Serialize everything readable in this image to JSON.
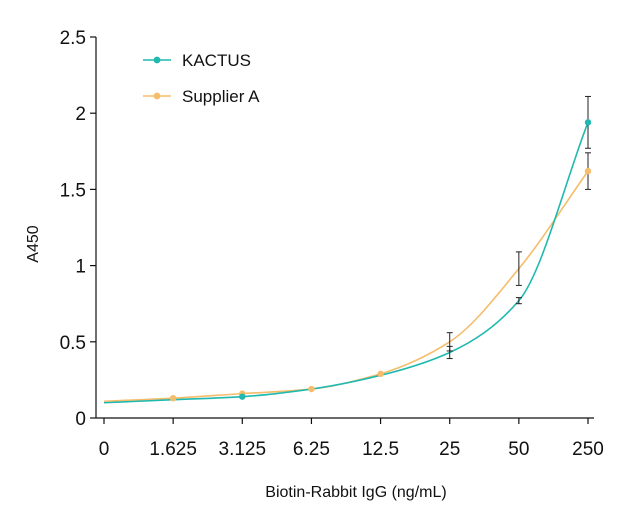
{
  "chart_data": {
    "type": "line",
    "title": "",
    "xlabel": "Biotin-Rabbit IgG (ng/mL)",
    "ylabel": "A450",
    "categories": [
      "0",
      "1.625",
      "3.125",
      "6.25",
      "12.5",
      "25",
      "50",
      "250"
    ],
    "ylim": [
      0,
      2.5
    ],
    "yticks": [
      "0",
      "0.5",
      "1",
      "1.5",
      "2",
      "2.5"
    ],
    "grid": false,
    "legend_position": "top-left",
    "series": [
      {
        "name": "KACTUS",
        "color": "#1fb9b0",
        "values": [
          0.1,
          0.12,
          0.14,
          0.19,
          0.28,
          0.43,
          0.77,
          1.94
        ],
        "errors": [
          null,
          null,
          null,
          null,
          null,
          0.04,
          0.02,
          0.17
        ],
        "show_marker": [
          false,
          false,
          true,
          false,
          false,
          false,
          false,
          true
        ]
      },
      {
        "name": "Supplier A",
        "color": "#f5bd6b",
        "values": [
          0.11,
          0.13,
          0.16,
          0.19,
          0.29,
          0.5,
          0.98,
          1.62
        ],
        "errors": [
          null,
          null,
          null,
          null,
          null,
          0.06,
          0.11,
          0.12
        ],
        "show_marker": [
          false,
          true,
          true,
          true,
          true,
          false,
          false,
          true
        ]
      }
    ]
  }
}
